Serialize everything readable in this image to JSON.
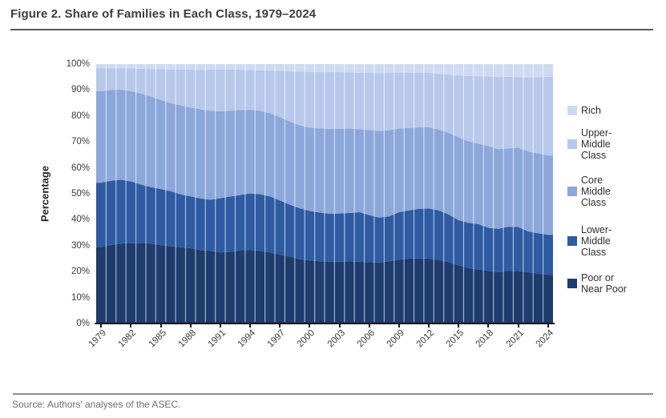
{
  "figure": {
    "title": "Figure 2. Share of Families in Each Class, 1979–2024",
    "source": "Source: Authors' analyses of the ASEC."
  },
  "chart_data": {
    "type": "area",
    "stacked": true,
    "ylabel": "Percentage",
    "ylim": [
      0,
      100
    ],
    "grid": "vertical-white-year-separators",
    "legend_position": "right",
    "y_tick_labels": [
      "0%",
      "10%",
      "20%",
      "30%",
      "40%",
      "50%",
      "60%",
      "70%",
      "80%",
      "90%",
      "100%"
    ],
    "x": [
      1979,
      1980,
      1981,
      1982,
      1983,
      1984,
      1985,
      1986,
      1987,
      1988,
      1989,
      1990,
      1991,
      1992,
      1993,
      1994,
      1995,
      1996,
      1997,
      1998,
      1999,
      2000,
      2001,
      2002,
      2003,
      2004,
      2005,
      2006,
      2007,
      2008,
      2009,
      2010,
      2011,
      2012,
      2013,
      2014,
      2015,
      2016,
      2017,
      2018,
      2019,
      2020,
      2021,
      2022,
      2023,
      2024
    ],
    "x_tick_years": [
      1979,
      1982,
      1985,
      1988,
      1991,
      1994,
      1997,
      2000,
      2003,
      2006,
      2009,
      2012,
      2015,
      2018,
      2021,
      2024
    ],
    "series": [
      {
        "name": "Poor or Near Poor",
        "color": "#1e3c6d",
        "values": [
          29.5,
          30.3,
          30.8,
          31.1,
          31.1,
          30.8,
          30.2,
          29.8,
          29.4,
          29.0,
          28.3,
          28.0,
          27.4,
          27.6,
          28.2,
          28.4,
          28.0,
          27.4,
          26.6,
          25.8,
          24.8,
          24.3,
          24.0,
          23.8,
          23.8,
          23.9,
          23.8,
          23.6,
          23.5,
          24.0,
          24.6,
          25.0,
          25.1,
          25.0,
          24.5,
          23.7,
          22.4,
          21.4,
          20.8,
          20.3,
          19.8,
          20.4,
          20.2,
          19.8,
          19.3,
          18.8
        ]
      },
      {
        "name": "Lower-Middle Class",
        "color": "#2e5ba2",
        "values": [
          24.8,
          24.7,
          24.6,
          23.7,
          22.5,
          21.8,
          21.6,
          21.2,
          20.4,
          20.0,
          19.9,
          19.7,
          20.9,
          21.3,
          21.3,
          21.7,
          21.8,
          21.6,
          20.8,
          20.0,
          19.6,
          19.1,
          18.8,
          18.5,
          18.6,
          18.7,
          19.1,
          18.2,
          17.3,
          17.3,
          18.3,
          18.6,
          19.1,
          19.3,
          19.1,
          18.3,
          17.4,
          17.4,
          17.5,
          16.6,
          16.7,
          16.9,
          17.0,
          15.7,
          15.5,
          15.4
        ]
      },
      {
        "name": "Core Middle Class",
        "color": "#8ca7da",
        "values": [
          35.2,
          35.0,
          34.8,
          34.8,
          35.0,
          34.9,
          34.3,
          34.0,
          34.3,
          34.2,
          34.4,
          34.3,
          33.5,
          33.1,
          32.8,
          32.3,
          32.2,
          32.0,
          32.1,
          32.0,
          32.0,
          32.1,
          32.4,
          32.7,
          32.6,
          32.6,
          32.0,
          32.8,
          33.4,
          33.2,
          32.2,
          31.8,
          31.4,
          31.4,
          31.1,
          31.5,
          32.0,
          31.4,
          31.0,
          31.5,
          30.7,
          30.2,
          30.6,
          30.8,
          30.8,
          30.5
        ]
      },
      {
        "name": "Upper-Middle Class",
        "color": "#b7c8ea",
        "values": [
          8.9,
          8.4,
          8.2,
          8.7,
          9.6,
          10.6,
          11.9,
          12.9,
          13.8,
          14.6,
          15.1,
          15.8,
          16.1,
          15.9,
          15.5,
          15.3,
          15.6,
          16.5,
          17.9,
          19.4,
          20.7,
          21.5,
          21.8,
          22.0,
          21.9,
          21.6,
          21.8,
          22.0,
          22.3,
          22.1,
          21.5,
          21.3,
          21.1,
          21.0,
          21.5,
          22.5,
          23.8,
          25.2,
          26.0,
          26.8,
          27.8,
          27.6,
          27.2,
          28.4,
          29.2,
          30.4
        ]
      },
      {
        "name": "Rich",
        "color": "#cedaf1",
        "values": [
          1.6,
          1.6,
          1.6,
          1.7,
          1.8,
          1.9,
          2.0,
          2.1,
          2.1,
          2.2,
          2.3,
          2.2,
          2.1,
          2.1,
          2.2,
          2.3,
          2.4,
          2.5,
          2.6,
          2.8,
          2.9,
          3.0,
          3.0,
          3.0,
          3.1,
          3.2,
          3.3,
          3.4,
          3.5,
          3.4,
          3.4,
          3.3,
          3.3,
          3.3,
          3.8,
          4.0,
          4.4,
          4.6,
          4.7,
          4.8,
          5.0,
          4.9,
          5.0,
          5.3,
          5.2,
          4.9
        ]
      }
    ],
    "legend": [
      {
        "name": "Rich",
        "lines": [
          "Rich"
        ],
        "color": "#cedaf1"
      },
      {
        "name": "Upper-Middle Class",
        "lines": [
          "Upper-",
          "Middle",
          "Class"
        ],
        "color": "#b7c8ea"
      },
      {
        "name": "Core Middle Class",
        "lines": [
          "Core",
          "Middle",
          "Class"
        ],
        "color": "#8ca7da"
      },
      {
        "name": "Lower-Middle Class",
        "lines": [
          "Lower-",
          "Middle",
          "Class"
        ],
        "color": "#2e5ba2"
      },
      {
        "name": "Poor or Near Poor",
        "lines": [
          "Poor or",
          "Near Poor"
        ],
        "color": "#1e3c6d"
      }
    ]
  }
}
